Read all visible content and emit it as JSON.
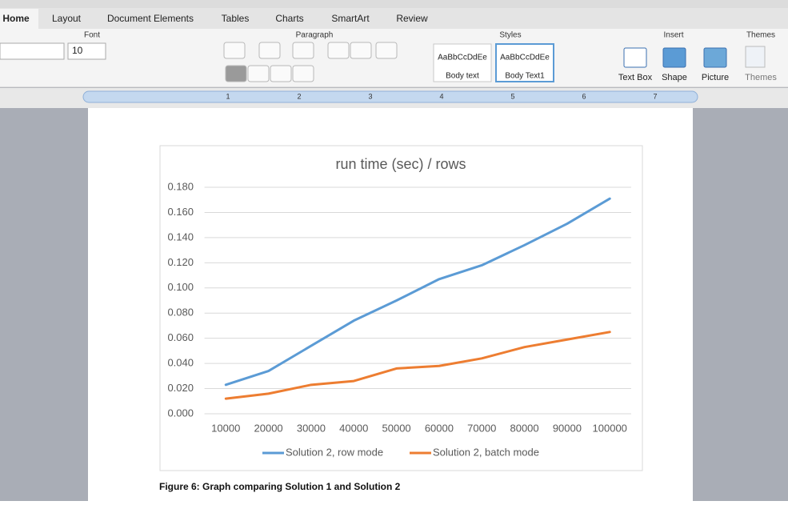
{
  "tabs": [
    "Home",
    "Layout",
    "Document Elements",
    "Tables",
    "Charts",
    "SmartArt",
    "Review"
  ],
  "ribbon": {
    "groups": [
      "Font",
      "Paragraph",
      "Styles",
      "Insert",
      "Themes"
    ],
    "font_size": "10",
    "styles": [
      {
        "preview": "AaBbCcDdEe",
        "name": "Body text"
      },
      {
        "preview": "AaBbCcDdEe",
        "name": "Body Text1"
      }
    ],
    "insert": [
      "Text Box",
      "Shape",
      "Picture"
    ],
    "themes": "Themes"
  },
  "ruler": [
    "1",
    "2",
    "3",
    "4",
    "5",
    "6",
    "7"
  ],
  "caption": "Figure 6: Graph comparing Solution 1 and Solution 2",
  "chart_data": {
    "type": "line",
    "title": "run time (sec) / rows",
    "categories": [
      "10000",
      "20000",
      "30000",
      "40000",
      "50000",
      "60000",
      "70000",
      "80000",
      "90000",
      "100000"
    ],
    "series": [
      {
        "name": "Solution 2, row mode",
        "color": "#5b9bd5",
        "values": [
          0.023,
          0.034,
          0.054,
          0.074,
          0.09,
          0.107,
          0.118,
          0.134,
          0.151,
          0.171
        ]
      },
      {
        "name": "Solution 2, batch mode",
        "color": "#ed7d31",
        "values": [
          0.012,
          0.016,
          0.023,
          0.026,
          0.036,
          0.038,
          0.044,
          0.053,
          0.059,
          0.065
        ]
      }
    ],
    "ylim": [
      0,
      0.18
    ],
    "yticks": [
      {
        "value": 0,
        "label": "0.000"
      },
      {
        "value": 0.02,
        "label": "0.020"
      },
      {
        "value": 0.04,
        "label": "0.040"
      },
      {
        "value": 0.06,
        "label": "0.060"
      },
      {
        "value": 0.08,
        "label": "0.080"
      },
      {
        "value": 0.1,
        "label": "0.100"
      },
      {
        "value": 0.12,
        "label": "0.120"
      },
      {
        "value": 0.14,
        "label": "0.140"
      },
      {
        "value": 0.16,
        "label": "0.160"
      },
      {
        "value": 0.18,
        "label": "0.180"
      }
    ],
    "grid": true,
    "legend": "bottom"
  }
}
